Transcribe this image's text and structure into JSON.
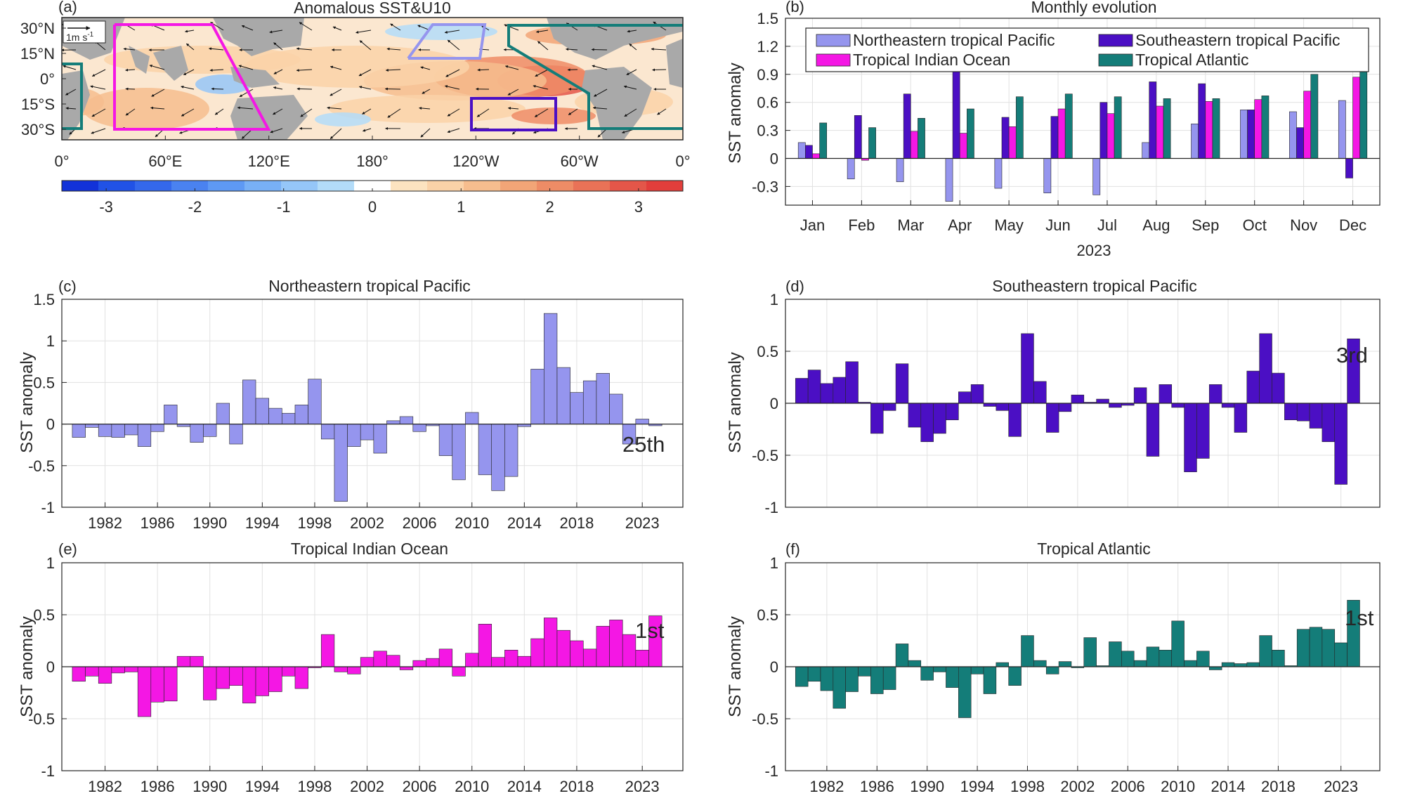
{
  "colors": {
    "northeastern": "#9595ee",
    "southeastern": "#4b0fc4",
    "indian": "#f417e4",
    "atlantic": "#147d79",
    "land": "#a9a9a9",
    "axis": "#262626",
    "grid": "#e1e1e1"
  },
  "panel_a": {
    "label": "(a)",
    "title": "Anomalous SST&U10",
    "y_ticks": [
      "30°N",
      "15°N",
      "0°",
      "15°S",
      "30°S"
    ],
    "x_ticks": [
      "0°",
      "60°E",
      "120°E",
      "180°",
      "120°W",
      "60°W",
      "0°"
    ],
    "wind_scale_label": "1m s",
    "wind_scale_exponent": "-1",
    "colorbar": {
      "ticks": [
        "-3",
        "-2",
        "-1",
        "0",
        "1",
        "2",
        "3"
      ],
      "range": [
        -3.5,
        3.5
      ],
      "colors": [
        "#1232d9",
        "#2152e6",
        "#3468ec",
        "#4a82f0",
        "#5e99f4",
        "#78b0f6",
        "#95c6f8",
        "#b3dcf9",
        "#ffffff",
        "#fce3c0",
        "#fad2a8",
        "#f6bd8e",
        "#f2a577",
        "#ee8c66",
        "#e97257",
        "#e45649",
        "#e23e3b"
      ]
    },
    "regions": [
      "Northeastern tropical Pacific",
      "Southeastern tropical Pacific",
      "Tropical Indian Ocean",
      "Tropical Atlantic"
    ]
  },
  "chart_data": [
    {
      "id": "b",
      "type": "bar",
      "label": "(b)",
      "title": "Monthly evolution",
      "ylabel": "SST anomaly",
      "xlabel": "2023",
      "ylim": [
        -0.5,
        1.5
      ],
      "yticks": [
        "-0.3",
        "0",
        "0.3",
        "0.6",
        "0.9",
        "1.2",
        "1.5"
      ],
      "ytick_values": [
        -0.3,
        0,
        0.3,
        0.6,
        0.9,
        1.2,
        1.5
      ],
      "categories": [
        "Jan",
        "Feb",
        "Mar",
        "Apr",
        "May",
        "Jun",
        "Jul",
        "Aug",
        "Sep",
        "Oct",
        "Nov",
        "Dec"
      ],
      "legend_position": "top",
      "series": [
        {
          "name": "Northeastern tropical Pacific",
          "color_key": "northeastern",
          "values": [
            0.17,
            -0.22,
            -0.25,
            -0.46,
            -0.32,
            -0.37,
            -0.39,
            0.17,
            0.37,
            0.52,
            0.5,
            0.62
          ]
        },
        {
          "name": "Southeastern tropical Pacific",
          "color_key": "southeastern",
          "values": [
            0.14,
            0.46,
            0.69,
            0.94,
            0.44,
            0.45,
            0.6,
            0.82,
            0.8,
            0.52,
            0.33,
            -0.21
          ]
        },
        {
          "name": "Tropical Indian Ocean",
          "color_key": "indian",
          "values": [
            0.05,
            -0.02,
            0.29,
            0.27,
            0.34,
            0.53,
            0.48,
            0.56,
            0.61,
            0.63,
            0.72,
            0.87
          ]
        },
        {
          "name": "Tropical Atlantic",
          "color_key": "atlantic",
          "values": [
            0.38,
            0.33,
            0.43,
            0.53,
            0.66,
            0.69,
            0.66,
            0.64,
            0.64,
            0.67,
            0.9,
            1.1
          ]
        }
      ]
    },
    {
      "id": "c",
      "type": "bar",
      "label": "(c)",
      "title": "Northeastern tropical Pacific",
      "ylabel": "SST anomaly",
      "ylim": [
        -1,
        1.5
      ],
      "yticks": [
        "-1",
        "-0.5",
        "0",
        "0.5",
        "1",
        "1.5"
      ],
      "ytick_values": [
        -1,
        -0.5,
        0,
        0.5,
        1,
        1.5
      ],
      "x_start": 1980,
      "xticks": [
        "1982",
        "1986",
        "1990",
        "1994",
        "1998",
        "2002",
        "2006",
        "2010",
        "2014",
        "2018",
        "2023"
      ],
      "rank_label": "25th",
      "color_key": "northeastern",
      "values": [
        -0.16,
        -0.04,
        -0.15,
        -0.16,
        -0.13,
        -0.27,
        -0.09,
        0.23,
        -0.03,
        -0.22,
        -0.15,
        0.25,
        -0.24,
        0.53,
        0.31,
        0.19,
        0.13,
        0.23,
        0.54,
        -0.18,
        -0.93,
        -0.27,
        -0.19,
        -0.35,
        0.04,
        0.09,
        -0.09,
        -0.02,
        -0.38,
        -0.67,
        0.14,
        -0.61,
        -0.8,
        -0.63,
        -0.03,
        0.66,
        1.33,
        0.68,
        0.38,
        0.52,
        0.61,
        0.36,
        -0.24,
        0.06,
        -0.02
      ]
    },
    {
      "id": "d",
      "type": "bar",
      "label": "(d)",
      "title": "Southeastern tropical Pacific",
      "ylabel": "SST anomaly",
      "ylim": [
        -1,
        1
      ],
      "yticks": [
        "-1",
        "-0.5",
        "0",
        "0.5",
        "1"
      ],
      "ytick_values": [
        -1,
        -0.5,
        0,
        0.5,
        1
      ],
      "x_start": 1980,
      "xticks": [],
      "rank_label": "3rd",
      "color_key": "southeastern",
      "values": [
        0.24,
        0.32,
        0.19,
        0.25,
        0.4,
        0.01,
        -0.29,
        -0.07,
        0.38,
        -0.23,
        -0.37,
        -0.29,
        -0.16,
        0.11,
        0.18,
        -0.03,
        -0.07,
        -0.32,
        0.67,
        0.21,
        -0.28,
        -0.08,
        0.08,
        0.01,
        0.04,
        -0.04,
        -0.02,
        0.15,
        -0.51,
        0.18,
        -0.04,
        -0.66,
        -0.53,
        0.18,
        -0.04,
        -0.28,
        0.31,
        0.67,
        0.29,
        -0.16,
        -0.17,
        -0.24,
        -0.37,
        -0.78,
        0.62
      ]
    },
    {
      "id": "e",
      "type": "bar",
      "label": "(e)",
      "title": "Tropical Indian Ocean",
      "ylabel": "SST anomaly",
      "ylim": [
        -1,
        1
      ],
      "yticks": [
        "-1",
        "-0.5",
        "0",
        "0.5",
        "1"
      ],
      "ytick_values": [
        -1,
        -0.5,
        0,
        0.5,
        1
      ],
      "x_start": 1980,
      "xticks": [
        "1982",
        "1986",
        "1990",
        "1994",
        "1998",
        "2002",
        "2006",
        "2010",
        "2014",
        "2018",
        "2023"
      ],
      "rank_label": "1st",
      "color_key": "indian",
      "values": [
        -0.14,
        -0.09,
        -0.16,
        -0.06,
        -0.05,
        -0.48,
        -0.34,
        -0.33,
        0.1,
        0.1,
        -0.32,
        -0.21,
        -0.18,
        -0.35,
        -0.28,
        -0.24,
        -0.09,
        -0.21,
        -0.01,
        0.31,
        -0.05,
        -0.07,
        0.09,
        0.15,
        0.11,
        -0.03,
        0.06,
        0.08,
        0.17,
        -0.09,
        0.13,
        0.41,
        0.09,
        0.16,
        0.1,
        0.27,
        0.47,
        0.35,
        0.25,
        0.17,
        0.39,
        0.45,
        0.31,
        0.16,
        0.49
      ]
    },
    {
      "id": "f",
      "type": "bar",
      "label": "(f)",
      "title": "Tropical Atlantic",
      "ylabel": "SST anomaly",
      "ylim": [
        -1,
        1
      ],
      "yticks": [
        "-1",
        "-0.5",
        "0",
        "0.5",
        "1"
      ],
      "ytick_values": [
        -1,
        -0.5,
        0,
        0.5,
        1
      ],
      "x_start": 1980,
      "xticks": [
        "1982",
        "1986",
        "1990",
        "1994",
        "1998",
        "2002",
        "2006",
        "2010",
        "2014",
        "2018",
        "2023"
      ],
      "rank_label": "1st",
      "color_key": "atlantic",
      "values": [
        -0.19,
        -0.14,
        -0.23,
        -0.4,
        -0.24,
        -0.09,
        -0.26,
        -0.22,
        0.22,
        0.06,
        -0.13,
        -0.05,
        -0.2,
        -0.49,
        -0.07,
        -0.26,
        0.04,
        -0.18,
        0.3,
        0.06,
        -0.07,
        0.05,
        -0.01,
        0.28,
        0.01,
        0.24,
        0.15,
        0.06,
        0.19,
        0.16,
        0.44,
        0.06,
        0.15,
        -0.03,
        0.04,
        0.03,
        0.04,
        0.3,
        0.16,
        0.01,
        0.36,
        0.38,
        0.36,
        0.23,
        0.64
      ]
    }
  ]
}
